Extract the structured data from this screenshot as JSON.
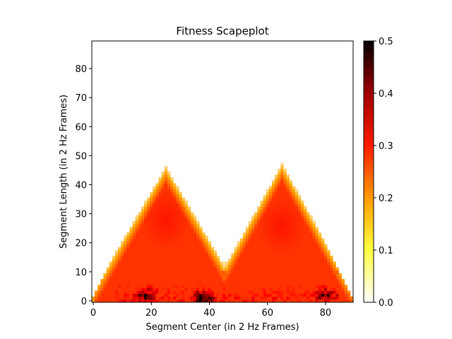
{
  "chart_data": {
    "type": "heatmap",
    "title": "Fitness Scapeplot",
    "xlabel": "Segment Center (in 2 Hz Frames)",
    "ylabel": "Segment Length (in 2 Hz Frames)",
    "xlim": [
      -0.5,
      89.5
    ],
    "ylim": [
      -0.5,
      89.5
    ],
    "x_ticks": [
      0,
      20,
      40,
      60,
      80
    ],
    "y_ticks": [
      0,
      10,
      20,
      30,
      40,
      50,
      60,
      70,
      80
    ],
    "n": 90,
    "colormap": "gist_heat_r",
    "colorbar": {
      "min": 0.0,
      "max": 0.5,
      "ticks": [
        "0.0",
        "0.1",
        "0.2",
        "0.3",
        "0.4",
        "0.5"
      ]
    },
    "peaks": [
      {
        "center": 25,
        "max_length": 46,
        "fitness": 0.2
      },
      {
        "center": 65,
        "max_length": 47,
        "fitness": 0.2
      }
    ],
    "low_length_hotspots": [
      {
        "center": 38,
        "length": 1,
        "fitness": 0.32
      },
      {
        "center": 18,
        "length": 2,
        "fitness": 0.28
      },
      {
        "center": 80,
        "length": 2,
        "fitness": 0.28
      }
    ]
  }
}
